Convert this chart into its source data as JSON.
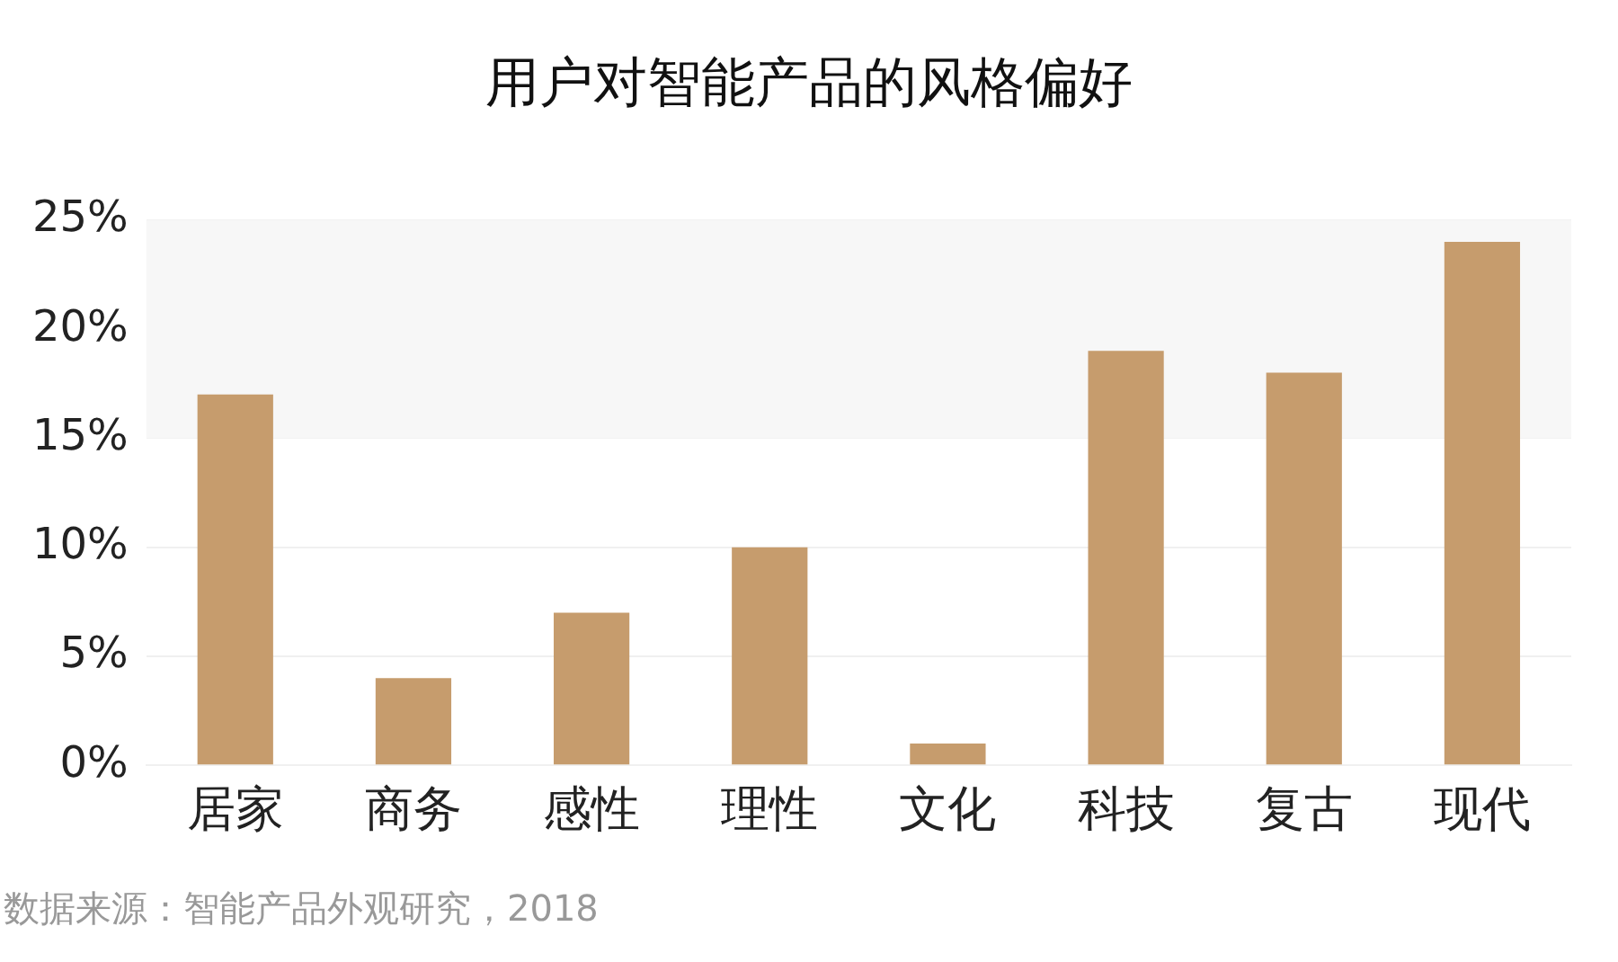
{
  "chart_data": {
    "type": "bar",
    "title": "用户对智能产品的风格偏好",
    "categories": [
      "居家",
      "商务",
      "感性",
      "理性",
      "文化",
      "科技",
      "复古",
      "现代"
    ],
    "values": [
      17,
      4,
      7,
      10,
      1,
      19,
      18,
      24
    ],
    "color": "#c69c6d",
    "ylim": [
      0,
      25
    ],
    "yticks": [
      {
        "value": 0,
        "label": "0%"
      },
      {
        "value": 5,
        "label": "5%"
      },
      {
        "value": 10,
        "label": "10%"
      },
      {
        "value": 15,
        "label": "15%"
      },
      {
        "value": 20,
        "label": "20%"
      },
      {
        "value": 25,
        "label": "25%"
      }
    ],
    "grid": "y",
    "bands": [
      {
        "axis": "y",
        "from": 15,
        "to": 25,
        "color": "#f7f7f7"
      }
    ],
    "annotations": [
      "数据来源：智能产品外观研究，2018"
    ]
  }
}
